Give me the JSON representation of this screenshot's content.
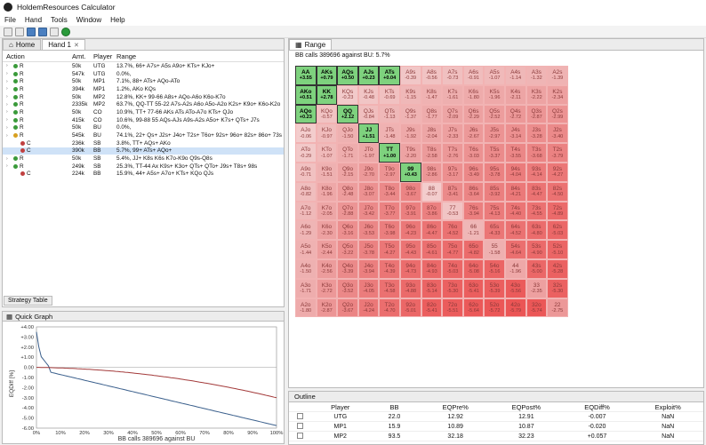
{
  "app": {
    "title": "HoldemResources Calculator"
  },
  "menu": [
    "File",
    "Hand",
    "Tools",
    "Window",
    "Help"
  ],
  "tabs": {
    "home": "Home",
    "hand": "Hand 1"
  },
  "table": {
    "headers": [
      "Action",
      "Amt.",
      "Player",
      "Range"
    ],
    "rows": [
      {
        "a": "R",
        "amt": "50k",
        "pl": "UTG",
        "rg": "13.7%, 66+ A7s+ A5s A9o+ KTs+ KJo+"
      },
      {
        "a": "R",
        "amt": "547k",
        "pl": "UTG",
        "rg": "0.0%,"
      },
      {
        "a": "R",
        "amt": "50k",
        "pl": "MP1",
        "rg": "7.1%, 88+ ATs+ AQo-ATo"
      },
      {
        "a": "R",
        "amt": "394k",
        "pl": "MP1",
        "rg": "1.2%, AKo KQs"
      },
      {
        "a": "R",
        "amt": "50k",
        "pl": "MP2",
        "rg": "12.8%, KK+ 99-66 A8s+ AQo-A6o K6o-K7o"
      },
      {
        "a": "R",
        "amt": "2335k",
        "pl": "MP2",
        "rg": "63.7%, QQ-TT 55-22 A7s-A2s A6o A5o-A2o K2s+ K9o+ K6o-K2o"
      },
      {
        "a": "R",
        "amt": "50k",
        "pl": "CO",
        "rg": "10.9%, TT+ 77-66 AKs ATs ATo-A7o KTs+ QJo"
      },
      {
        "a": "R",
        "amt": "415k",
        "pl": "CO",
        "rg": "10.6%, 99-88 55 AQs-AJs A9s-A2s A5o+ K7s+ QTs+ J7s"
      },
      {
        "a": "R",
        "amt": "50k",
        "pl": "BU",
        "rg": "0.0%,"
      },
      {
        "a": "R",
        "amt": "545k",
        "pl": "BU",
        "rg": "74.1%, 22+ Qs+ J2s+ J4o+ T2s+ T6o+ 92s+ 96o+ 82s+ 86o+ 73s"
      },
      {
        "a": "C",
        "amt": "236k",
        "pl": "SB",
        "rg": "3.8%, TT+ AQs+ AKo"
      },
      {
        "a": "C",
        "amt": "390k",
        "pl": "BB",
        "rg": "5.7%, 99+ ATs+ AQo+"
      },
      {
        "a": "R",
        "amt": "50k",
        "pl": "SB",
        "rg": "5.4%, JJ+ K8s K6s K7o-K9o Q9s-Q8s"
      },
      {
        "a": "R",
        "amt": "249k",
        "pl": "SB",
        "rg": "25.3%, TT-44 Ax K9s+ K3o+ QTs+ QTo+ J9s+ T8s+ 98s"
      },
      {
        "a": "C",
        "amt": "224k",
        "pl": "BB",
        "rg": "15.9%, 44+ A5s+ A7o+ KTs+ KQo QJs"
      }
    ]
  },
  "strategy_tab": "Strategy Table",
  "graph": {
    "title": "Quick Graph",
    "ylabel": "EQDiff [%]",
    "xlabel": "BB calls 389696 against BU",
    "yticks": [
      "+4.00",
      "+3.00",
      "+2.00",
      "+1.00",
      "0.00",
      "-1.00",
      "-2.00",
      "-3.00",
      "-4.00",
      "-5.00",
      "-6.00"
    ],
    "xticks": [
      "0%",
      "10%",
      "20%",
      "30%",
      "40%",
      "50%",
      "60%",
      "70%",
      "80%",
      "90%",
      "100%"
    ]
  },
  "range": {
    "tab": "Range",
    "info": "BB calls 389696 against BU: 5.7%",
    "cells": [
      [
        [
          "AA",
          "+3.55"
        ],
        [
          "AKs",
          "+0.79"
        ],
        [
          "AQs",
          "+0.50"
        ],
        [
          "AJs",
          "+0.23"
        ],
        [
          "ATs",
          "+0.04"
        ],
        [
          "A9s",
          "-0.39"
        ],
        [
          "A8s",
          "-0.56"
        ],
        [
          "A7s",
          "-0.73"
        ],
        [
          "A6s",
          "-0.91"
        ],
        [
          "A5s",
          "-1.07"
        ],
        [
          "A4s",
          "-1.14"
        ],
        [
          "A3s",
          "-1.32"
        ],
        [
          "A2s",
          "-1.39"
        ]
      ],
      [
        [
          "AKo",
          "+0.51"
        ],
        [
          "KK",
          "+2.78"
        ],
        [
          "KQs",
          "-0.23"
        ],
        [
          "KJs",
          "-0.48"
        ],
        [
          "KTs",
          "-0.69"
        ],
        [
          "K9s",
          "-1.15"
        ],
        [
          "K8s",
          "-1.47"
        ],
        [
          "K7s",
          "-1.61"
        ],
        [
          "K6s",
          "-1.80"
        ],
        [
          "K5s",
          "-1.96"
        ],
        [
          "K4s",
          "-2.11"
        ],
        [
          "K3s",
          "-2.22"
        ],
        [
          "K2s",
          "-2.34"
        ]
      ],
      [
        [
          "AQo",
          "+0.23"
        ],
        [
          "KQo",
          "-0.57"
        ],
        [
          "QQ",
          "+2.12"
        ],
        [
          "QJs",
          "-0.84"
        ],
        [
          "QTs",
          "-1.13"
        ],
        [
          "Q9s",
          "-1.37"
        ],
        [
          "Q8s",
          "-1.77"
        ],
        [
          "Q7s",
          "-2.09"
        ],
        [
          "Q6s",
          "-2.29"
        ],
        [
          "Q5s",
          "-2.52"
        ],
        [
          "Q4s",
          "-2.72"
        ],
        [
          "Q3s",
          "-2.87"
        ],
        [
          "Q2s",
          "-2.99"
        ]
      ],
      [
        [
          "AJo",
          "-0.06"
        ],
        [
          "KJo",
          "-0.97"
        ],
        [
          "QJo",
          "-1.50"
        ],
        [
          "JJ",
          "+1.51"
        ],
        [
          "JTs",
          "-1.48"
        ],
        [
          "J9s",
          "-1.92"
        ],
        [
          "J8s",
          "-2.04"
        ],
        [
          "J7s",
          "-2.33"
        ],
        [
          "J6s",
          "-2.67"
        ],
        [
          "J5s",
          "-2.97"
        ],
        [
          "J4s",
          "-3.14"
        ],
        [
          "J3s",
          "-3.28"
        ],
        [
          "J2s",
          "-3.40"
        ]
      ],
      [
        [
          "ATo",
          "-0.29"
        ],
        [
          "KTo",
          "-1.07"
        ],
        [
          "QTo",
          "-1.71"
        ],
        [
          "JTo",
          "-1.97"
        ],
        [
          "TT",
          "+1.00"
        ],
        [
          "T9s",
          "-2.20"
        ],
        [
          "T8s",
          "-2.58"
        ],
        [
          "T7s",
          "-2.76"
        ],
        [
          "T6s",
          "-3.03"
        ],
        [
          "T5s",
          "-3.37"
        ],
        [
          "T4s",
          "-3.55"
        ],
        [
          "T3s",
          "-3.68"
        ],
        [
          "T2s",
          "-3.79"
        ]
      ],
      [
        [
          "A9o",
          "-0.71"
        ],
        [
          "K9o",
          "-1.51"
        ],
        [
          "Q9o",
          "-2.15"
        ],
        [
          "J9o",
          "-2.70"
        ],
        [
          "T9o",
          "-2.97"
        ],
        [
          "99",
          "+0.43"
        ],
        [
          "98s",
          "-2.86"
        ],
        [
          "97s",
          "-3.17"
        ],
        [
          "96s",
          "-3.49"
        ],
        [
          "95s",
          "-3.78"
        ],
        [
          "94s",
          "-4.04"
        ],
        [
          "93s",
          "-4.14"
        ],
        [
          "92s",
          "-4.27"
        ]
      ],
      [
        [
          "A8o",
          "-0.82"
        ],
        [
          "K8o",
          "-1.96"
        ],
        [
          "Q8o",
          "-2.48"
        ],
        [
          "J8o",
          "-3.07"
        ],
        [
          "T8o",
          "-3.44"
        ],
        [
          "98o",
          "-3.67"
        ],
        [
          "88",
          "-0.07"
        ],
        [
          "87s",
          "-3.41"
        ],
        [
          "86s",
          "-3.64"
        ],
        [
          "85s",
          "-3.92"
        ],
        [
          "84s",
          "-4.21"
        ],
        [
          "83s",
          "-4.47"
        ],
        [
          "82s",
          "-4.50"
        ]
      ],
      [
        [
          "A7o",
          "-1.12"
        ],
        [
          "K7o",
          "-2.05"
        ],
        [
          "Q7o",
          "-2.88"
        ],
        [
          "J7o",
          "-3.42"
        ],
        [
          "T7o",
          "-3.77"
        ],
        [
          "97o",
          "-3.91"
        ],
        [
          "87o",
          "-3.86"
        ],
        [
          "77",
          "-0.53"
        ],
        [
          "76s",
          "-3.94"
        ],
        [
          "75s",
          "-4.13"
        ],
        [
          "74s",
          "-4.40"
        ],
        [
          "73s",
          "-4.55"
        ],
        [
          "72s",
          "-4.89"
        ]
      ],
      [
        [
          "A6o",
          "-1.29"
        ],
        [
          "K6o",
          "-2.30"
        ],
        [
          "Q6o",
          "-3.16"
        ],
        [
          "J6o",
          "-3.53"
        ],
        [
          "T6o",
          "-3.98"
        ],
        [
          "96o",
          "-4.23"
        ],
        [
          "86o",
          "-4.47"
        ],
        [
          "76o",
          "-4.52"
        ],
        [
          "66",
          "-1.21"
        ],
        [
          "65s",
          "-4.33"
        ],
        [
          "64s",
          "-4.52"
        ],
        [
          "63s",
          "-4.80"
        ],
        [
          "62s",
          "-5.03"
        ]
      ],
      [
        [
          "A5o",
          "-1.44"
        ],
        [
          "K5o",
          "-2.44"
        ],
        [
          "Q5o",
          "-3.22"
        ],
        [
          "J5o",
          "-3.78"
        ],
        [
          "T5o",
          "-4.27"
        ],
        [
          "95o",
          "-4.43"
        ],
        [
          "85o",
          "-4.61"
        ],
        [
          "75o",
          "-4.77"
        ],
        [
          "65o",
          "-4.82"
        ],
        [
          "55",
          "-1.58"
        ],
        [
          "54s",
          "-4.64"
        ],
        [
          "53s",
          "-4.90"
        ],
        [
          "52s",
          "-5.10"
        ]
      ],
      [
        [
          "A4o",
          "-1.50"
        ],
        [
          "K4o",
          "-2.56"
        ],
        [
          "Q4o",
          "-3.39"
        ],
        [
          "J4o",
          "-3.94"
        ],
        [
          "T4o",
          "-4.39"
        ],
        [
          "94o",
          "-4.73"
        ],
        [
          "84o",
          "-4.93"
        ],
        [
          "74o",
          "-5.03"
        ],
        [
          "64o",
          "-5.08"
        ],
        [
          "54o",
          "-5.16"
        ],
        [
          "44",
          "-1.96"
        ],
        [
          "43s",
          "-5.00"
        ],
        [
          "42s",
          "-5.28"
        ]
      ],
      [
        [
          "A3o",
          "-1.71"
        ],
        [
          "K3o",
          "-2.72"
        ],
        [
          "Q3o",
          "-3.52"
        ],
        [
          "J3o",
          "-4.05"
        ],
        [
          "T3o",
          "-4.58"
        ],
        [
          "93o",
          "-4.88"
        ],
        [
          "83o",
          "-5.14"
        ],
        [
          "73o",
          "-5.30"
        ],
        [
          "63o",
          "-5.41"
        ],
        [
          "53o",
          "-5.39"
        ],
        [
          "43o",
          "-5.56"
        ],
        [
          "33",
          "-2.35"
        ],
        [
          "32s",
          "-5.30"
        ]
      ],
      [
        [
          "A2o",
          "-1.80"
        ],
        [
          "K2o",
          "-2.87"
        ],
        [
          "Q2o",
          "-3.67"
        ],
        [
          "J2o",
          "-4.24"
        ],
        [
          "T2o",
          "-4.70"
        ],
        [
          "92o",
          "-5.01"
        ],
        [
          "82o",
          "-5.41"
        ],
        [
          "72o",
          "-5.51"
        ],
        [
          "62o",
          "-5.64"
        ],
        [
          "52o",
          "-5.72"
        ],
        [
          "42o",
          "-5.79"
        ],
        [
          "32o",
          "-5.74"
        ],
        [
          "22",
          "-2.75"
        ]
      ]
    ]
  },
  "outline": {
    "tab": "Outline",
    "headers": [
      "Player",
      "BB",
      "EQPre%",
      "EQPost%",
      "EQDiff%",
      "Exploit%"
    ],
    "rows": [
      [
        "UTG",
        "22.0",
        "12.92",
        "12.91",
        "-0.007",
        "NaN"
      ],
      [
        "MP1",
        "15.9",
        "10.89",
        "10.87",
        "-0.020",
        "NaN"
      ],
      [
        "MP2",
        "93.5",
        "32.18",
        "32.23",
        "+0.057",
        "NaN"
      ]
    ]
  },
  "colors": {
    "accent": "#7ed27e",
    "cell_base": "#ef7a7a",
    "selection": "#cfe2f7"
  }
}
